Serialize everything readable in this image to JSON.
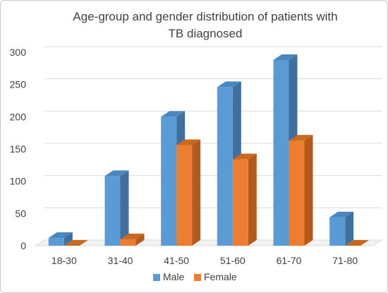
{
  "chart_data": {
    "type": "bar",
    "title_lines": [
      "Age-group and gender distribution of patients with",
      "TB diagnosed"
    ],
    "categories": [
      "18-30",
      "31-40",
      "41-50",
      "51-60",
      "61-70",
      "71-80"
    ],
    "series": [
      {
        "name": "Male",
        "values": [
          12,
          108,
          200,
          246,
          288,
          44
        ],
        "color": "#5b9bd5",
        "side_color": "#3f6f9c",
        "top_color": "#4a86c0"
      },
      {
        "name": "Female",
        "values": [
          0,
          10,
          156,
          134,
          163,
          0
        ],
        "color": "#ed7d31",
        "side_color": "#b35b1e",
        "top_color": "#c9681f"
      }
    ],
    "y_ticks": [
      "0",
      "50",
      "100",
      "150",
      "200",
      "250",
      "300"
    ],
    "ylim": [
      0,
      300
    ],
    "grid": true,
    "legend_position": "bottom"
  }
}
